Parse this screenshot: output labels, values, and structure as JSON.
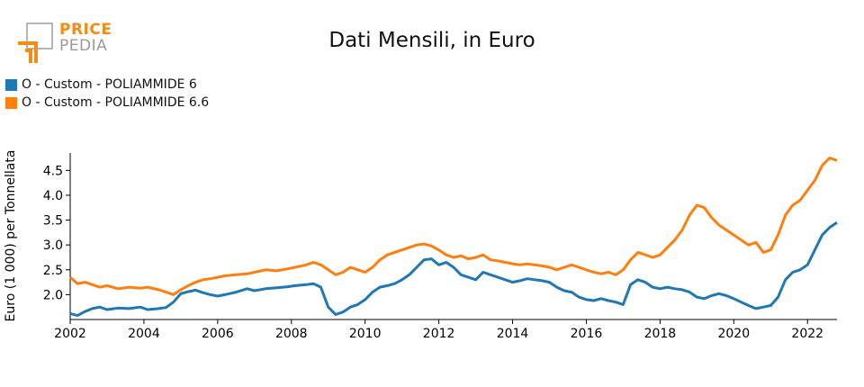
{
  "logo": {
    "line1": "PRICE",
    "line2": "PEDIA"
  },
  "colors": {
    "accent_orange": "#f28c12",
    "logo_gray": "#9a9a9a"
  },
  "chart_data": {
    "type": "line",
    "title": "Dati Mensili, in Euro",
    "xlabel": "",
    "ylabel": "Euro (1 000) per Tonnellata",
    "xlim": [
      2002.0,
      2022.8
    ],
    "ylim": [
      1.5,
      4.85
    ],
    "x_ticks": [
      2002,
      2004,
      2006,
      2008,
      2010,
      2012,
      2014,
      2016,
      2018,
      2020,
      2022
    ],
    "y_ticks": [
      2.0,
      2.5,
      3.0,
      3.5,
      4.0,
      4.5
    ],
    "y_tick_labels": [
      "2.0",
      "2.5",
      "3.0",
      "3.5",
      "4.0",
      "4.5"
    ],
    "grid": false,
    "legend_position": "top-left",
    "series": [
      {
        "name": "O - Custom - POLIAMMIDE 6",
        "color": "#1f77b4",
        "points": [
          [
            2002.0,
            1.62
          ],
          [
            2002.2,
            1.58
          ],
          [
            2002.4,
            1.66
          ],
          [
            2002.6,
            1.72
          ],
          [
            2002.8,
            1.75
          ],
          [
            2003.0,
            1.7
          ],
          [
            2003.3,
            1.73
          ],
          [
            2003.6,
            1.72
          ],
          [
            2003.9,
            1.75
          ],
          [
            2004.1,
            1.7
          ],
          [
            2004.4,
            1.72
          ],
          [
            2004.6,
            1.74
          ],
          [
            2004.8,
            1.85
          ],
          [
            2005.0,
            2.02
          ],
          [
            2005.2,
            2.06
          ],
          [
            2005.4,
            2.09
          ],
          [
            2005.6,
            2.04
          ],
          [
            2005.8,
            2.0
          ],
          [
            2006.0,
            1.97
          ],
          [
            2006.2,
            2.0
          ],
          [
            2006.5,
            2.05
          ],
          [
            2006.8,
            2.12
          ],
          [
            2007.0,
            2.08
          ],
          [
            2007.3,
            2.12
          ],
          [
            2007.6,
            2.14
          ],
          [
            2007.9,
            2.16
          ],
          [
            2008.1,
            2.18
          ],
          [
            2008.4,
            2.2
          ],
          [
            2008.6,
            2.22
          ],
          [
            2008.8,
            2.15
          ],
          [
            2009.0,
            1.75
          ],
          [
            2009.2,
            1.6
          ],
          [
            2009.4,
            1.65
          ],
          [
            2009.6,
            1.75
          ],
          [
            2009.8,
            1.8
          ],
          [
            2010.0,
            1.9
          ],
          [
            2010.2,
            2.05
          ],
          [
            2010.4,
            2.15
          ],
          [
            2010.6,
            2.18
          ],
          [
            2010.8,
            2.22
          ],
          [
            2011.0,
            2.3
          ],
          [
            2011.2,
            2.4
          ],
          [
            2011.4,
            2.55
          ],
          [
            2011.6,
            2.7
          ],
          [
            2011.8,
            2.72
          ],
          [
            2012.0,
            2.6
          ],
          [
            2012.2,
            2.65
          ],
          [
            2012.4,
            2.55
          ],
          [
            2012.6,
            2.4
          ],
          [
            2012.8,
            2.35
          ],
          [
            2013.0,
            2.3
          ],
          [
            2013.2,
            2.45
          ],
          [
            2013.4,
            2.4
          ],
          [
            2013.6,
            2.35
          ],
          [
            2013.8,
            2.3
          ],
          [
            2014.0,
            2.25
          ],
          [
            2014.2,
            2.28
          ],
          [
            2014.4,
            2.32
          ],
          [
            2014.6,
            2.3
          ],
          [
            2014.8,
            2.28
          ],
          [
            2015.0,
            2.25
          ],
          [
            2015.2,
            2.15
          ],
          [
            2015.4,
            2.08
          ],
          [
            2015.6,
            2.05
          ],
          [
            2015.8,
            1.95
          ],
          [
            2016.0,
            1.9
          ],
          [
            2016.2,
            1.88
          ],
          [
            2016.4,
            1.92
          ],
          [
            2016.6,
            1.88
          ],
          [
            2016.8,
            1.85
          ],
          [
            2017.0,
            1.8
          ],
          [
            2017.2,
            2.2
          ],
          [
            2017.4,
            2.3
          ],
          [
            2017.6,
            2.25
          ],
          [
            2017.8,
            2.15
          ],
          [
            2018.0,
            2.12
          ],
          [
            2018.2,
            2.15
          ],
          [
            2018.4,
            2.12
          ],
          [
            2018.6,
            2.1
          ],
          [
            2018.8,
            2.05
          ],
          [
            2019.0,
            1.95
          ],
          [
            2019.2,
            1.92
          ],
          [
            2019.4,
            1.98
          ],
          [
            2019.6,
            2.02
          ],
          [
            2019.8,
            1.98
          ],
          [
            2020.0,
            1.92
          ],
          [
            2020.2,
            1.85
          ],
          [
            2020.4,
            1.78
          ],
          [
            2020.6,
            1.72
          ],
          [
            2020.8,
            1.75
          ],
          [
            2021.0,
            1.78
          ],
          [
            2021.2,
            1.95
          ],
          [
            2021.4,
            2.3
          ],
          [
            2021.6,
            2.45
          ],
          [
            2021.8,
            2.5
          ],
          [
            2022.0,
            2.6
          ],
          [
            2022.2,
            2.9
          ],
          [
            2022.4,
            3.2
          ],
          [
            2022.6,
            3.35
          ],
          [
            2022.8,
            3.45
          ]
        ]
      },
      {
        "name": "O - Custom - POLIAMMIDE 6.6",
        "color": "#ff7f0e",
        "points": [
          [
            2002.0,
            2.35
          ],
          [
            2002.2,
            2.22
          ],
          [
            2002.4,
            2.25
          ],
          [
            2002.6,
            2.2
          ],
          [
            2002.8,
            2.15
          ],
          [
            2003.0,
            2.18
          ],
          [
            2003.3,
            2.12
          ],
          [
            2003.6,
            2.15
          ],
          [
            2003.9,
            2.13
          ],
          [
            2004.1,
            2.15
          ],
          [
            2004.4,
            2.1
          ],
          [
            2004.6,
            2.05
          ],
          [
            2004.8,
            2.0
          ],
          [
            2005.0,
            2.1
          ],
          [
            2005.2,
            2.18
          ],
          [
            2005.4,
            2.25
          ],
          [
            2005.6,
            2.3
          ],
          [
            2005.8,
            2.32
          ],
          [
            2006.0,
            2.35
          ],
          [
            2006.2,
            2.38
          ],
          [
            2006.5,
            2.4
          ],
          [
            2006.8,
            2.42
          ],
          [
            2007.0,
            2.45
          ],
          [
            2007.3,
            2.5
          ],
          [
            2007.6,
            2.48
          ],
          [
            2007.9,
            2.52
          ],
          [
            2008.1,
            2.55
          ],
          [
            2008.4,
            2.6
          ],
          [
            2008.6,
            2.65
          ],
          [
            2008.8,
            2.6
          ],
          [
            2009.0,
            2.5
          ],
          [
            2009.2,
            2.4
          ],
          [
            2009.4,
            2.45
          ],
          [
            2009.6,
            2.55
          ],
          [
            2009.8,
            2.5
          ],
          [
            2010.0,
            2.45
          ],
          [
            2010.2,
            2.55
          ],
          [
            2010.4,
            2.7
          ],
          [
            2010.6,
            2.8
          ],
          [
            2010.8,
            2.85
          ],
          [
            2011.0,
            2.9
          ],
          [
            2011.2,
            2.95
          ],
          [
            2011.4,
            3.0
          ],
          [
            2011.6,
            3.02
          ],
          [
            2011.8,
            2.98
          ],
          [
            2012.0,
            2.9
          ],
          [
            2012.2,
            2.8
          ],
          [
            2012.4,
            2.75
          ],
          [
            2012.6,
            2.78
          ],
          [
            2012.8,
            2.72
          ],
          [
            2013.0,
            2.75
          ],
          [
            2013.2,
            2.8
          ],
          [
            2013.4,
            2.7
          ],
          [
            2013.6,
            2.68
          ],
          [
            2013.8,
            2.65
          ],
          [
            2014.0,
            2.62
          ],
          [
            2014.2,
            2.6
          ],
          [
            2014.4,
            2.62
          ],
          [
            2014.6,
            2.6
          ],
          [
            2014.8,
            2.58
          ],
          [
            2015.0,
            2.55
          ],
          [
            2015.2,
            2.5
          ],
          [
            2015.4,
            2.55
          ],
          [
            2015.6,
            2.6
          ],
          [
            2015.8,
            2.55
          ],
          [
            2016.0,
            2.5
          ],
          [
            2016.2,
            2.45
          ],
          [
            2016.4,
            2.42
          ],
          [
            2016.6,
            2.45
          ],
          [
            2016.8,
            2.4
          ],
          [
            2017.0,
            2.5
          ],
          [
            2017.2,
            2.7
          ],
          [
            2017.4,
            2.85
          ],
          [
            2017.6,
            2.8
          ],
          [
            2017.8,
            2.75
          ],
          [
            2018.0,
            2.8
          ],
          [
            2018.2,
            2.95
          ],
          [
            2018.4,
            3.1
          ],
          [
            2018.6,
            3.3
          ],
          [
            2018.8,
            3.6
          ],
          [
            2019.0,
            3.8
          ],
          [
            2019.2,
            3.75
          ],
          [
            2019.4,
            3.55
          ],
          [
            2019.6,
            3.4
          ],
          [
            2019.8,
            3.3
          ],
          [
            2020.0,
            3.2
          ],
          [
            2020.2,
            3.1
          ],
          [
            2020.4,
            3.0
          ],
          [
            2020.6,
            3.05
          ],
          [
            2020.8,
            2.85
          ],
          [
            2021.0,
            2.9
          ],
          [
            2021.2,
            3.2
          ],
          [
            2021.4,
            3.6
          ],
          [
            2021.6,
            3.8
          ],
          [
            2021.8,
            3.9
          ],
          [
            2022.0,
            4.1
          ],
          [
            2022.2,
            4.3
          ],
          [
            2022.4,
            4.6
          ],
          [
            2022.6,
            4.75
          ],
          [
            2022.8,
            4.7
          ]
        ]
      }
    ]
  }
}
